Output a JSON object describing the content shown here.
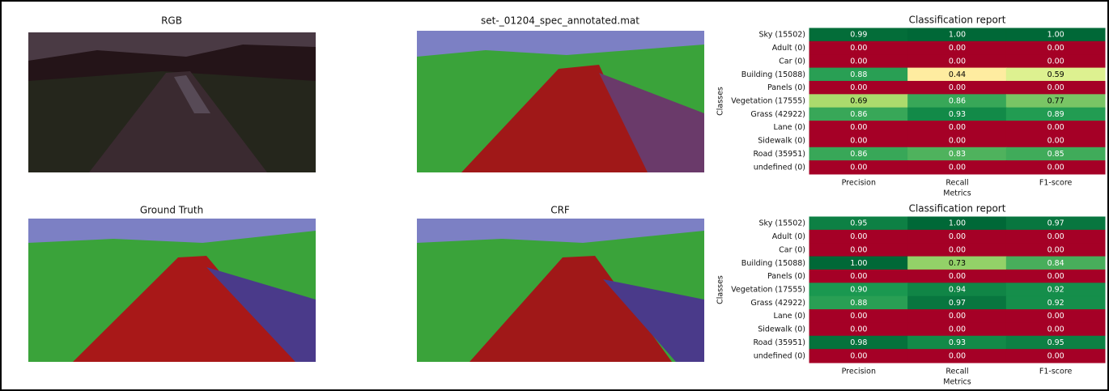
{
  "panels": [
    {
      "title": "RGB"
    },
    {
      "title": "set-_01204_spec_annotated.mat"
    },
    {
      "title": "Ground Truth"
    },
    {
      "title": "CRF"
    }
  ],
  "chart_data": [
    {
      "type": "heatmap",
      "title": "Classification report",
      "xlabel": "Metrics",
      "ylabel": "Classes",
      "colormap": "RdYlGn",
      "categories": [
        "Precision",
        "Recall",
        "F1-score"
      ],
      "rows": [
        "Sky (15502)",
        "Adult (0)",
        "Car (0)",
        "Building (15088)",
        "Panels (0)",
        "Vegetation (17555)",
        "Grass (42922)",
        "Lane (0)",
        "Sidewalk (0)",
        "Road (35951)",
        "undefined (0)"
      ],
      "values": [
        [
          0.99,
          1,
          1
        ],
        [
          0,
          0,
          0
        ],
        [
          0,
          0,
          0
        ],
        [
          0.88,
          0.44,
          0.59
        ],
        [
          0,
          0,
          0
        ],
        [
          0.69,
          0.86,
          0.77
        ],
        [
          0.86,
          0.93,
          0.89
        ],
        [
          0,
          0,
          0
        ],
        [
          0,
          0,
          0
        ],
        [
          0.86,
          0.83,
          0.85
        ],
        [
          0,
          0,
          0
        ]
      ],
      "value_labels": [
        [
          "0.99",
          "1.00",
          "1.00"
        ],
        [
          "0.00",
          "0.00",
          "0.00"
        ],
        [
          "0.00",
          "0.00",
          "0.00"
        ],
        [
          "0.88",
          "0.44",
          "0.59"
        ],
        [
          "0.00",
          "0.00",
          "0.00"
        ],
        [
          "0.69",
          "0.86",
          "0.77"
        ],
        [
          "0.86",
          "0.93",
          "0.89"
        ],
        [
          "0.00",
          "0.00",
          "0.00"
        ],
        [
          "0.00",
          "0.00",
          "0.00"
        ],
        [
          "0.86",
          "0.83",
          "0.85"
        ],
        [
          "0.00",
          "0.00",
          "0.00"
        ]
      ]
    },
    {
      "type": "heatmap",
      "title": "Classification report",
      "xlabel": "Metrics",
      "ylabel": "Classes",
      "colormap": "RdYlGn",
      "categories": [
        "Precision",
        "Recall",
        "F1-score"
      ],
      "rows": [
        "Sky (15502)",
        "Adult (0)",
        "Car (0)",
        "Building (15088)",
        "Panels (0)",
        "Vegetation (17555)",
        "Grass (42922)",
        "Lane (0)",
        "Sidewalk (0)",
        "Road (35951)",
        "undefined (0)"
      ],
      "values": [
        [
          0.95,
          1,
          0.97
        ],
        [
          0,
          0,
          0
        ],
        [
          0,
          0,
          0
        ],
        [
          1,
          0.73,
          0.84
        ],
        [
          0,
          0,
          0
        ],
        [
          0.9,
          0.94,
          0.92
        ],
        [
          0.88,
          0.97,
          0.92
        ],
        [
          0,
          0,
          0
        ],
        [
          0,
          0,
          0
        ],
        [
          0.98,
          0.93,
          0.95
        ],
        [
          0,
          0,
          0
        ]
      ],
      "value_labels": [
        [
          "0.95",
          "1.00",
          "0.97"
        ],
        [
          "0.00",
          "0.00",
          "0.00"
        ],
        [
          "0.00",
          "0.00",
          "0.00"
        ],
        [
          "1.00",
          "0.73",
          "0.84"
        ],
        [
          "0.00",
          "0.00",
          "0.00"
        ],
        [
          "0.90",
          "0.94",
          "0.92"
        ],
        [
          "0.88",
          "0.97",
          "0.92"
        ],
        [
          "0.00",
          "0.00",
          "0.00"
        ],
        [
          "0.00",
          "0.00",
          "0.00"
        ],
        [
          "0.98",
          "0.93",
          "0.95"
        ],
        [
          "0.00",
          "0.00",
          "0.00"
        ]
      ]
    }
  ]
}
